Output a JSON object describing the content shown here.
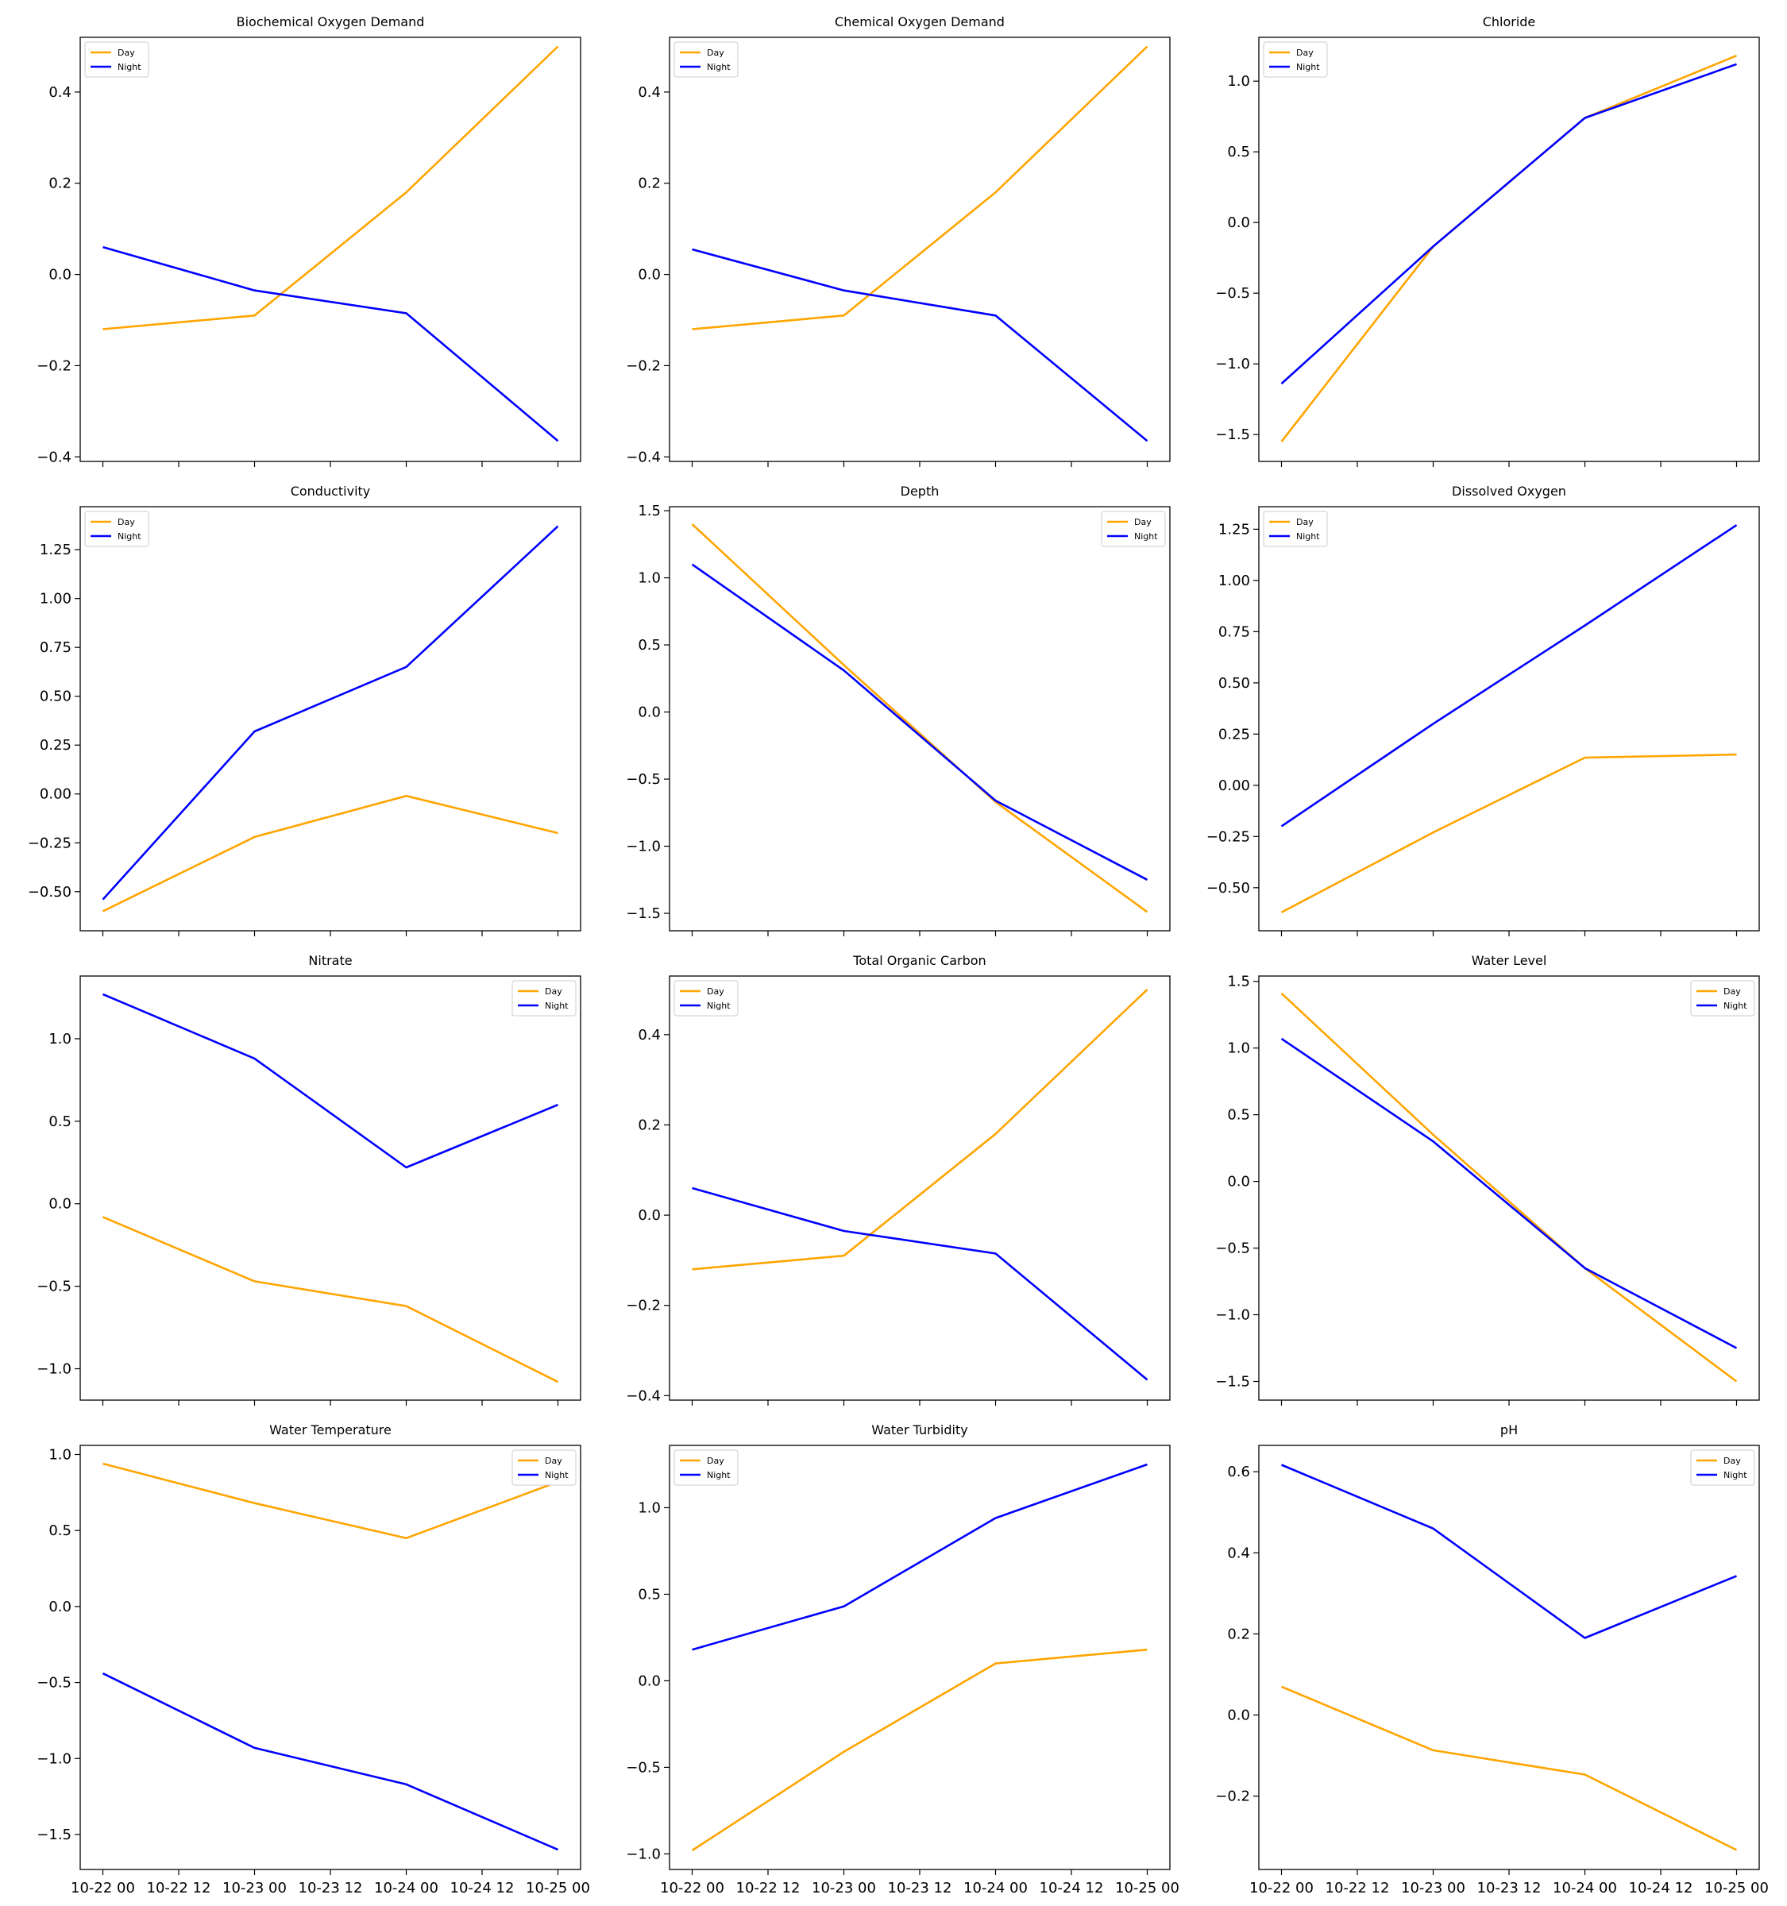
{
  "legend_labels": [
    "Day",
    "Night"
  ],
  "colors": {
    "day": "#FFA500",
    "night": "#0000FF"
  },
  "x_tick_labels": [
    "10-22 00",
    "10-22 12",
    "10-23 00",
    "10-23 12",
    "10-24 00",
    "10-24 12",
    "10-25 00"
  ],
  "chart_data": [
    {
      "type": "line",
      "title": "Biochemical Oxygen Demand",
      "x": [
        "10-22 00",
        "10-23 00",
        "10-24 00",
        "10-25 00"
      ],
      "series": [
        {
          "name": "Day",
          "values": [
            -0.12,
            -0.09,
            0.18,
            0.5
          ]
        },
        {
          "name": "Night",
          "values": [
            0.06,
            -0.035,
            -0.085,
            -0.365
          ]
        }
      ],
      "ylim": [
        -0.41,
        0.52
      ],
      "yticks": [
        -0.4,
        -0.2,
        0.0,
        0.2,
        0.4
      ],
      "ytick_labels": [
        "−0.4",
        "−0.2",
        "0.0",
        "0.2",
        "0.4"
      ],
      "legend": "top-left"
    },
    {
      "type": "line",
      "title": "Chemical Oxygen Demand",
      "x": [
        "10-22 00",
        "10-23 00",
        "10-24 00",
        "10-25 00"
      ],
      "series": [
        {
          "name": "Day",
          "values": [
            -0.12,
            -0.09,
            0.18,
            0.5
          ]
        },
        {
          "name": "Night",
          "values": [
            0.055,
            -0.035,
            -0.09,
            -0.365
          ]
        }
      ],
      "ylim": [
        -0.41,
        0.52
      ],
      "yticks": [
        -0.4,
        -0.2,
        0.0,
        0.2,
        0.4
      ],
      "ytick_labels": [
        "−0.4",
        "−0.2",
        "0.0",
        "0.2",
        "0.4"
      ],
      "legend": "top-left"
    },
    {
      "type": "line",
      "title": "Chloride",
      "x": [
        "10-22 00",
        "10-23 00",
        "10-24 00",
        "10-25 00"
      ],
      "series": [
        {
          "name": "Day",
          "values": [
            -1.55,
            -0.17,
            0.74,
            1.18
          ]
        },
        {
          "name": "Night",
          "values": [
            -1.14,
            -0.17,
            0.74,
            1.12
          ]
        }
      ],
      "ylim": [
        -1.69,
        1.31
      ],
      "yticks": [
        -1.5,
        -1.0,
        -0.5,
        0.0,
        0.5,
        1.0
      ],
      "ytick_labels": [
        "−1.5",
        "−1.0",
        "−0.5",
        "0.0",
        "0.5",
        "1.0"
      ],
      "legend": "top-left"
    },
    {
      "type": "line",
      "title": "Conductivity",
      "x": [
        "10-22 00",
        "10-23 00",
        "10-24 00",
        "10-25 00"
      ],
      "series": [
        {
          "name": "Day",
          "values": [
            -0.6,
            -0.22,
            -0.01,
            -0.2
          ]
        },
        {
          "name": "Night",
          "values": [
            -0.54,
            0.32,
            0.65,
            1.37
          ]
        }
      ],
      "ylim": [
        -0.7,
        1.47
      ],
      "yticks": [
        -0.5,
        -0.25,
        0.0,
        0.25,
        0.5,
        0.75,
        1.0,
        1.25
      ],
      "ytick_labels": [
        "−0.50",
        "−0.25",
        "0.00",
        "0.25",
        "0.50",
        "0.75",
        "1.00",
        "1.25"
      ],
      "legend": "top-left"
    },
    {
      "type": "line",
      "title": "Depth",
      "x": [
        "10-22 00",
        "10-23 00",
        "10-24 00",
        "10-25 00"
      ],
      "series": [
        {
          "name": "Day",
          "values": [
            1.4,
            0.35,
            -0.67,
            -1.49
          ]
        },
        {
          "name": "Night",
          "values": [
            1.1,
            0.31,
            -0.66,
            -1.25
          ]
        }
      ],
      "ylim": [
        -1.63,
        1.53
      ],
      "yticks": [
        -1.5,
        -1.0,
        -0.5,
        0.0,
        0.5,
        1.0,
        1.5
      ],
      "ytick_labels": [
        "−1.5",
        "−1.0",
        "−0.5",
        "0.0",
        "0.5",
        "1.0",
        "1.5"
      ],
      "legend": "top-right"
    },
    {
      "type": "line",
      "title": "Dissolved Oxygen",
      "x": [
        "10-22 00",
        "10-23 00",
        "10-24 00",
        "10-25 00"
      ],
      "series": [
        {
          "name": "Day",
          "values": [
            -0.62,
            -0.23,
            0.135,
            0.15
          ]
        },
        {
          "name": "Night",
          "values": [
            -0.2,
            0.3,
            0.78,
            1.27
          ]
        }
      ],
      "ylim": [
        -0.71,
        1.36
      ],
      "yticks": [
        -0.5,
        -0.25,
        0.0,
        0.25,
        0.5,
        0.75,
        1.0,
        1.25
      ],
      "ytick_labels": [
        "−0.50",
        "−0.25",
        "0.00",
        "0.25",
        "0.50",
        "0.75",
        "1.00",
        "1.25"
      ],
      "legend": "top-left"
    },
    {
      "type": "line",
      "title": "Nitrate",
      "x": [
        "10-22 00",
        "10-23 00",
        "10-24 00",
        "10-25 00"
      ],
      "series": [
        {
          "name": "Day",
          "values": [
            -0.08,
            -0.47,
            -0.62,
            -1.08
          ]
        },
        {
          "name": "Night",
          "values": [
            1.27,
            0.88,
            0.22,
            0.6
          ]
        }
      ],
      "ylim": [
        -1.19,
        1.38
      ],
      "yticks": [
        -1.0,
        -0.5,
        0.0,
        0.5,
        1.0
      ],
      "ytick_labels": [
        "−1.0",
        "−0.5",
        "0.0",
        "0.5",
        "1.0"
      ],
      "legend": "top-right"
    },
    {
      "type": "line",
      "title": "Total Organic Carbon",
      "x": [
        "10-22 00",
        "10-23 00",
        "10-24 00",
        "10-25 00"
      ],
      "series": [
        {
          "name": "Day",
          "values": [
            -0.12,
            -0.09,
            0.18,
            0.5
          ]
        },
        {
          "name": "Night",
          "values": [
            0.06,
            -0.035,
            -0.085,
            -0.365
          ]
        }
      ],
      "ylim": [
        -0.41,
        0.53
      ],
      "yticks": [
        -0.4,
        -0.2,
        0.0,
        0.2,
        0.4
      ],
      "ytick_labels": [
        "−0.4",
        "−0.2",
        "0.0",
        "0.2",
        "0.4"
      ],
      "legend": "top-left"
    },
    {
      "type": "line",
      "title": "Water Level",
      "x": [
        "10-22 00",
        "10-23 00",
        "10-24 00",
        "10-25 00"
      ],
      "series": [
        {
          "name": "Day",
          "values": [
            1.41,
            0.35,
            -0.65,
            -1.5
          ]
        },
        {
          "name": "Night",
          "values": [
            1.07,
            0.3,
            -0.65,
            -1.25
          ]
        }
      ],
      "ylim": [
        -1.64,
        1.54
      ],
      "yticks": [
        -1.5,
        -1.0,
        -0.5,
        0.0,
        0.5,
        1.0,
        1.5
      ],
      "ytick_labels": [
        "−1.5",
        "−1.0",
        "−0.5",
        "0.0",
        "0.5",
        "1.0",
        "1.5"
      ],
      "legend": "top-right"
    },
    {
      "type": "line",
      "title": "Water Temperature",
      "x": [
        "10-22 00",
        "10-23 00",
        "10-24 00",
        "10-25 00"
      ],
      "series": [
        {
          "name": "Day",
          "values": [
            0.94,
            0.68,
            0.45,
            0.82
          ]
        },
        {
          "name": "Night",
          "values": [
            -0.44,
            -0.93,
            -1.17,
            -1.6
          ]
        }
      ],
      "ylim": [
        -1.73,
        1.06
      ],
      "yticks": [
        -1.5,
        -1.0,
        -0.5,
        0.0,
        0.5,
        1.0
      ],
      "ytick_labels": [
        "−1.5",
        "−1.0",
        "−0.5",
        "0.0",
        "0.5",
        "1.0"
      ],
      "legend": "top-right"
    },
    {
      "type": "line",
      "title": "Water Turbidity",
      "x": [
        "10-22 00",
        "10-23 00",
        "10-24 00",
        "10-25 00"
      ],
      "series": [
        {
          "name": "Day",
          "values": [
            -0.98,
            -0.41,
            0.1,
            0.18
          ]
        },
        {
          "name": "Night",
          "values": [
            0.18,
            0.43,
            0.94,
            1.25
          ]
        }
      ],
      "ylim": [
        -1.09,
        1.36
      ],
      "yticks": [
        -1.0,
        -0.5,
        0.0,
        0.5,
        1.0
      ],
      "ytick_labels": [
        "−1.0",
        "−0.5",
        "0.0",
        "0.5",
        "1.0"
      ],
      "legend": "top-left"
    },
    {
      "type": "line",
      "title": "pH",
      "x": [
        "10-22 00",
        "10-23 00",
        "10-24 00",
        "10-25 00"
      ],
      "series": [
        {
          "name": "Day",
          "values": [
            0.07,
            -0.087,
            -0.147,
            -0.333
          ]
        },
        {
          "name": "Night",
          "values": [
            0.617,
            0.46,
            0.19,
            0.343
          ]
        }
      ],
      "ylim": [
        -0.381,
        0.665
      ],
      "yticks": [
        -0.2,
        0.0,
        0.2,
        0.4,
        0.6
      ],
      "ytick_labels": [
        "−0.2",
        "0.0",
        "0.2",
        "0.4",
        "0.6"
      ],
      "legend": "top-right"
    }
  ]
}
